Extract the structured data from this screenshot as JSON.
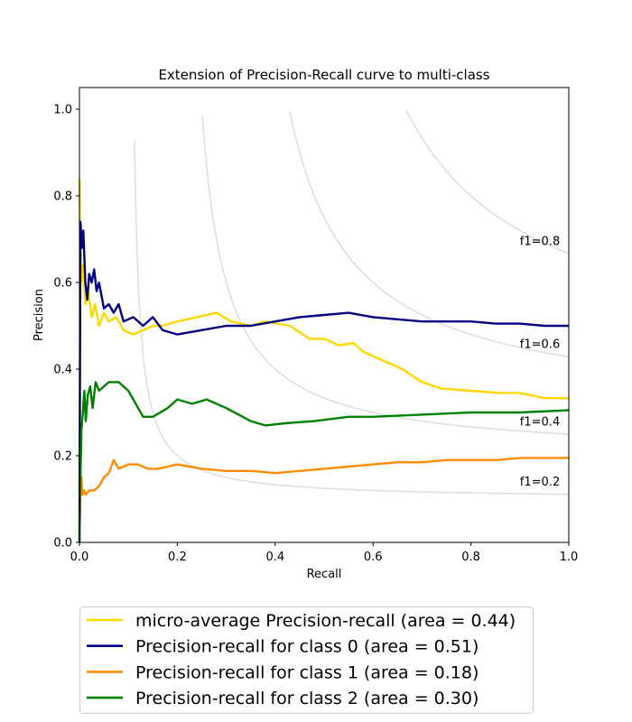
{
  "chart_data": {
    "type": "line",
    "title": "Extension of Precision-Recall curve to multi-class",
    "xlabel": "Recall",
    "ylabel": "Precision",
    "xlim": [
      0.0,
      1.0
    ],
    "ylim": [
      0.0,
      1.05
    ],
    "xticks": [
      "0.0",
      "0.2",
      "0.4",
      "0.6",
      "0.8",
      "1.0"
    ],
    "yticks": [
      "0.0",
      "0.2",
      "0.4",
      "0.6",
      "0.8",
      "1.0"
    ],
    "grid": false,
    "legend_position": "below plot",
    "iso_f1": [
      {
        "f1": 0.2,
        "label": "f1=0.2"
      },
      {
        "f1": 0.4,
        "label": "f1=0.4"
      },
      {
        "f1": 0.6,
        "label": "f1=0.6"
      },
      {
        "f1": 0.8,
        "label": "f1=0.8"
      }
    ],
    "series": [
      {
        "name": "micro-average Precision-recall (area = 0.44)",
        "color": "#ffd700",
        "x": [
          0.0,
          0.003,
          0.007,
          0.012,
          0.018,
          0.025,
          0.032,
          0.04,
          0.05,
          0.06,
          0.075,
          0.09,
          0.11,
          0.13,
          0.15,
          0.17,
          0.2,
          0.24,
          0.28,
          0.31,
          0.35,
          0.38,
          0.43,
          0.47,
          0.5,
          0.53,
          0.56,
          0.58,
          0.62,
          0.66,
          0.7,
          0.74,
          0.8,
          0.86,
          0.9,
          0.95,
          1.0
        ],
        "y": [
          0.84,
          0.6,
          0.64,
          0.55,
          0.58,
          0.52,
          0.55,
          0.5,
          0.53,
          0.51,
          0.52,
          0.49,
          0.48,
          0.49,
          0.5,
          0.5,
          0.51,
          0.52,
          0.53,
          0.51,
          0.5,
          0.51,
          0.5,
          0.47,
          0.47,
          0.455,
          0.46,
          0.44,
          0.42,
          0.4,
          0.37,
          0.355,
          0.35,
          0.345,
          0.345,
          0.333,
          0.333
        ]
      },
      {
        "name": "Precision-recall for class 0 (area = 0.51)",
        "color": "#000080",
        "x": [
          0.0,
          0.002,
          0.005,
          0.008,
          0.012,
          0.016,
          0.02,
          0.025,
          0.03,
          0.035,
          0.04,
          0.05,
          0.06,
          0.07,
          0.08,
          0.09,
          0.11,
          0.13,
          0.15,
          0.17,
          0.2,
          0.25,
          0.3,
          0.35,
          0.4,
          0.45,
          0.5,
          0.55,
          0.6,
          0.65,
          0.7,
          0.75,
          0.8,
          0.85,
          0.9,
          0.95,
          1.0
        ],
        "y": [
          0.0,
          0.74,
          0.68,
          0.72,
          0.6,
          0.56,
          0.62,
          0.6,
          0.63,
          0.58,
          0.6,
          0.54,
          0.55,
          0.53,
          0.55,
          0.51,
          0.52,
          0.5,
          0.52,
          0.49,
          0.48,
          0.49,
          0.5,
          0.5,
          0.51,
          0.52,
          0.525,
          0.53,
          0.52,
          0.515,
          0.51,
          0.51,
          0.51,
          0.505,
          0.505,
          0.5,
          0.5
        ]
      },
      {
        "name": "Precision-recall for class 1 (area = 0.18)",
        "color": "#ff8c00",
        "x": [
          0.0,
          0.002,
          0.004,
          0.006,
          0.009,
          0.013,
          0.02,
          0.03,
          0.04,
          0.05,
          0.06,
          0.07,
          0.08,
          0.1,
          0.12,
          0.14,
          0.16,
          0.2,
          0.25,
          0.3,
          0.35,
          0.4,
          0.45,
          0.5,
          0.55,
          0.6,
          0.65,
          0.7,
          0.75,
          0.8,
          0.85,
          0.9,
          0.95,
          1.0
        ],
        "y": [
          0.0,
          0.12,
          0.15,
          0.11,
          0.12,
          0.11,
          0.12,
          0.12,
          0.13,
          0.15,
          0.16,
          0.19,
          0.17,
          0.18,
          0.18,
          0.17,
          0.17,
          0.18,
          0.17,
          0.165,
          0.165,
          0.16,
          0.165,
          0.17,
          0.175,
          0.18,
          0.185,
          0.185,
          0.19,
          0.19,
          0.19,
          0.195,
          0.195,
          0.195
        ]
      },
      {
        "name": "Precision-recall for class 2 (area = 0.30)",
        "color": "#008000",
        "x": [
          0.0,
          0.002,
          0.004,
          0.007,
          0.01,
          0.013,
          0.017,
          0.022,
          0.027,
          0.033,
          0.04,
          0.05,
          0.06,
          0.07,
          0.08,
          0.1,
          0.12,
          0.13,
          0.15,
          0.18,
          0.2,
          0.23,
          0.26,
          0.3,
          0.35,
          0.38,
          0.42,
          0.48,
          0.55,
          0.6,
          0.7,
          0.8,
          0.9,
          1.0
        ],
        "y": [
          0.0,
          0.15,
          0.26,
          0.3,
          0.35,
          0.28,
          0.34,
          0.36,
          0.31,
          0.37,
          0.35,
          0.36,
          0.37,
          0.37,
          0.37,
          0.35,
          0.31,
          0.29,
          0.29,
          0.31,
          0.33,
          0.32,
          0.33,
          0.31,
          0.28,
          0.27,
          0.275,
          0.28,
          0.29,
          0.29,
          0.295,
          0.3,
          0.3,
          0.305
        ]
      }
    ]
  }
}
